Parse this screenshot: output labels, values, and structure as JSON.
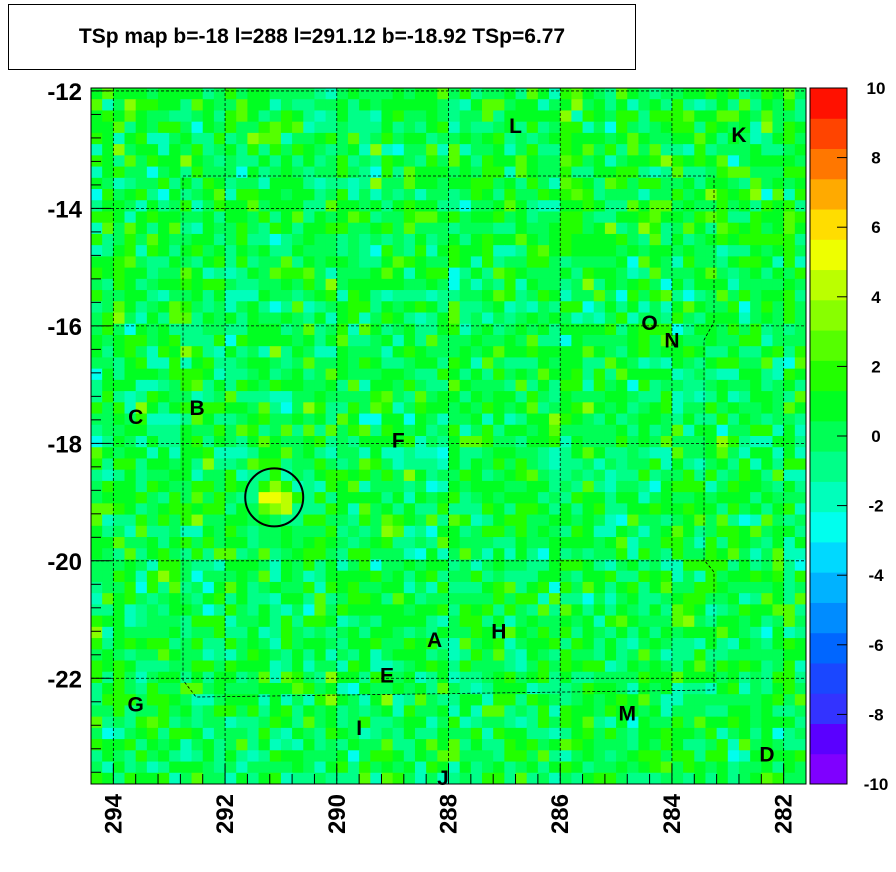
{
  "title": "TSp map b=-18 l=288 l=291.12 b=-18.92 TSp=6.77",
  "chart_data": {
    "type": "heatmap",
    "x_ticks": [
      "294",
      "292",
      "290",
      "288",
      "286",
      "284",
      "282"
    ],
    "y_ticks": [
      "-12",
      "-14",
      "-16",
      "-18",
      "-20",
      "-22"
    ],
    "xlim": [
      294.4,
      281.6
    ],
    "ylim": [
      -23.8,
      -11.95
    ],
    "colorbar": {
      "ticks": [
        "10",
        "8",
        "6",
        "4",
        "2",
        "0",
        "-2",
        "-4",
        "-6",
        "-8",
        "-10"
      ],
      "range": [
        -10,
        10
      ],
      "colors": [
        "#7f00ff",
        "#5a00ff",
        "#3333ff",
        "#1a47ff",
        "#0066ff",
        "#008cff",
        "#00b2ff",
        "#00d9ff",
        "#00ffee",
        "#00ffbb",
        "#00ff88",
        "#00ff55",
        "#00ff22",
        "#22ff00",
        "#55ff00",
        "#88ff00",
        "#bbff00",
        "#eeff00",
        "#ffdd00",
        "#ffaa00",
        "#ff7700",
        "#ff4400",
        "#ff1100"
      ]
    },
    "source_marker": {
      "l": 291.12,
      "b": -18.92,
      "TSp": 6.77
    },
    "labels": [
      {
        "text": "L",
        "l": 286.8,
        "b": -12.6
      },
      {
        "text": "K",
        "l": 282.8,
        "b": -12.75
      },
      {
        "text": "O",
        "l": 284.4,
        "b": -15.95
      },
      {
        "text": "N",
        "l": 284.0,
        "b": -16.25
      },
      {
        "text": "C",
        "l": 293.6,
        "b": -17.55
      },
      {
        "text": "B",
        "l": 292.5,
        "b": -17.4
      },
      {
        "text": "F",
        "l": 288.9,
        "b": -17.95
      },
      {
        "text": "A",
        "l": 288.25,
        "b": -21.35
      },
      {
        "text": "H",
        "l": 287.1,
        "b": -21.2
      },
      {
        "text": "E",
        "l": 289.1,
        "b": -21.95
      },
      {
        "text": "G",
        "l": 293.6,
        "b": -22.45
      },
      {
        "text": "M",
        "l": 284.8,
        "b": -22.6
      },
      {
        "text": "I",
        "l": 289.6,
        "b": -22.85
      },
      {
        "text": "D",
        "l": 282.3,
        "b": -23.3
      },
      {
        "text": "J",
        "l": 288.1,
        "b": -23.7
      }
    ]
  }
}
